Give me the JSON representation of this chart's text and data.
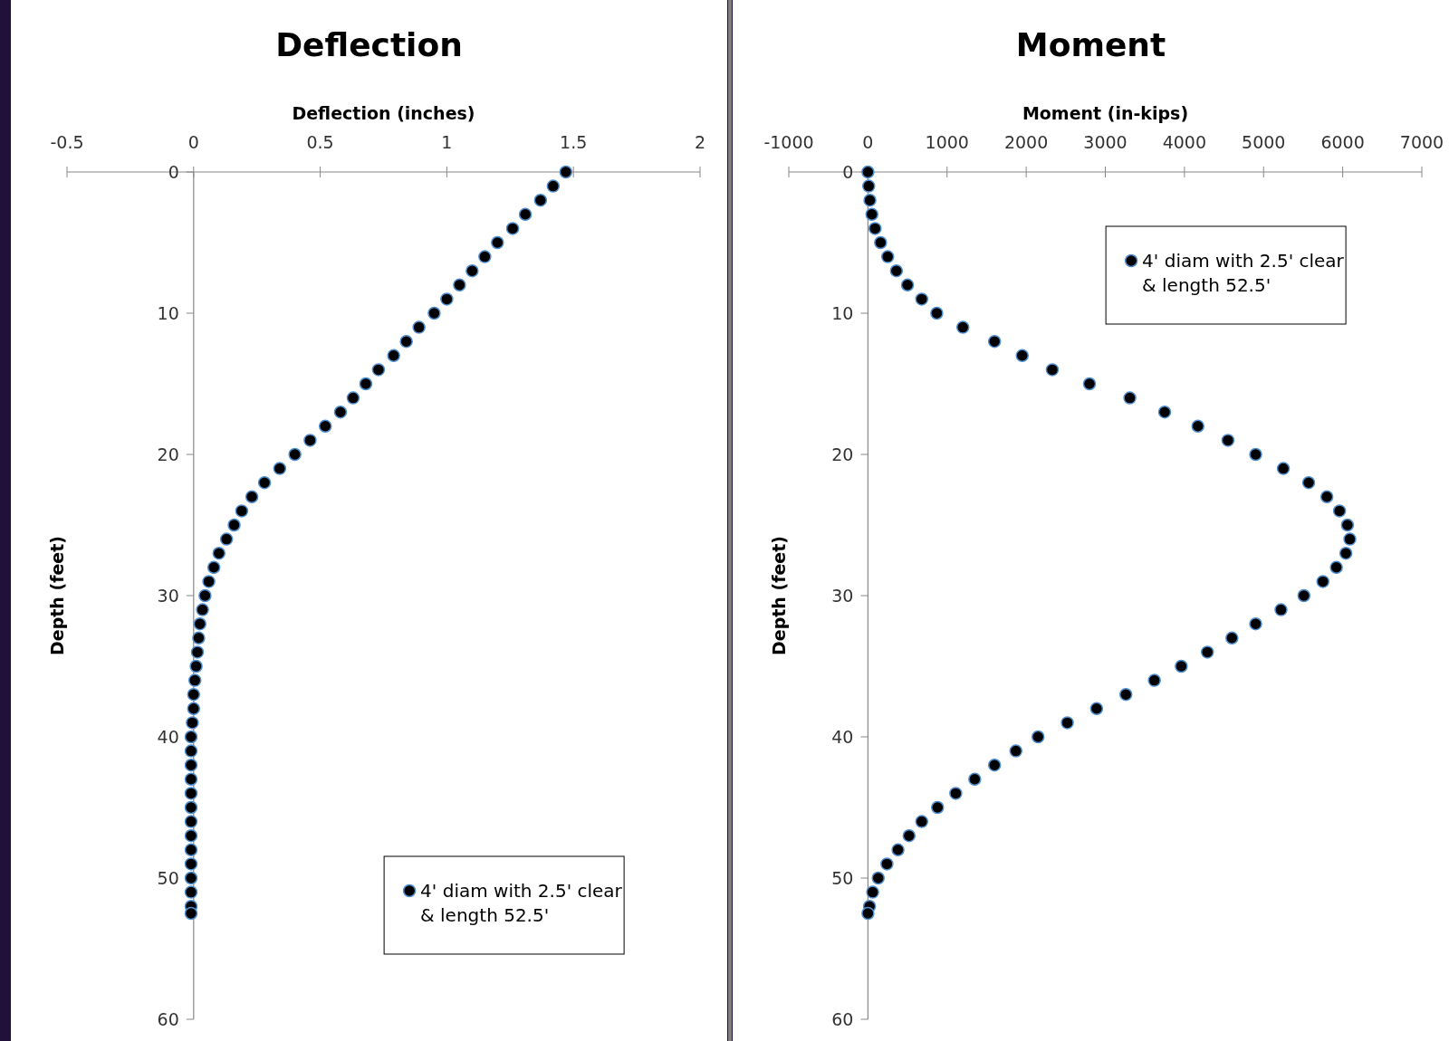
{
  "chart_data": [
    {
      "type": "scatter",
      "title": "Deflection",
      "xlabel": "Deflection (inches)",
      "ylabel": "Depth (feet)",
      "xlim": [
        -0.5,
        2
      ],
      "xticks": [
        -0.5,
        0,
        0.5,
        1,
        1.5,
        2
      ],
      "ylim": [
        60,
        0
      ],
      "yticks": [
        0,
        10,
        20,
        30,
        40,
        50,
        60
      ],
      "legend": "bottom right",
      "marker": "circle",
      "series": [
        {
          "name": "4' diam with 2.5' clear & length 52.5'",
          "color": "#000000",
          "x": [
            1.47,
            1.42,
            1.37,
            1.31,
            1.26,
            1.2,
            1.15,
            1.1,
            1.05,
            1.0,
            0.95,
            0.89,
            0.84,
            0.79,
            0.73,
            0.68,
            0.63,
            0.58,
            0.52,
            0.46,
            0.4,
            0.34,
            0.28,
            0.23,
            0.19,
            0.16,
            0.13,
            0.1,
            0.08,
            0.06,
            0.045,
            0.035,
            0.025,
            0.02,
            0.015,
            0.01,
            0.005,
            0,
            0,
            -0.005,
            -0.01,
            -0.01,
            -0.01,
            -0.01,
            -0.01,
            -0.01,
            -0.01,
            -0.01,
            -0.01,
            -0.01,
            -0.01,
            -0.01,
            -0.01,
            -0.01
          ],
          "values": [
            0,
            1,
            2,
            3,
            4,
            5,
            6,
            7,
            8,
            9,
            10,
            11,
            12,
            13,
            14,
            15,
            16,
            17,
            18,
            19,
            20,
            21,
            22,
            23,
            24,
            25,
            26,
            27,
            28,
            29,
            30,
            31,
            32,
            33,
            34,
            35,
            36,
            37,
            38,
            39,
            40,
            41,
            42,
            43,
            44,
            45,
            46,
            47,
            48,
            49,
            50,
            51,
            52,
            52.5
          ]
        }
      ]
    },
    {
      "type": "scatter",
      "title": "Moment",
      "xlabel": "Moment (in-kips)",
      "ylabel": "Depth (feet)",
      "xlim": [
        -1000,
        7000
      ],
      "xticks": [
        -1000,
        0,
        1000,
        2000,
        3000,
        4000,
        5000,
        6000,
        7000
      ],
      "ylim": [
        60,
        0
      ],
      "yticks": [
        0,
        10,
        20,
        30,
        40,
        50,
        60
      ],
      "legend": "top right",
      "marker": "circle",
      "series": [
        {
          "name": "4' diam with 2.5' clear & length 52.5'",
          "color": "#000000",
          "x": [
            0,
            10,
            25,
            50,
            90,
            160,
            250,
            360,
            500,
            680,
            870,
            1200,
            1600,
            1950,
            2330,
            2800,
            3310,
            3750,
            4170,
            4550,
            4900,
            5250,
            5570,
            5800,
            5960,
            6060,
            6090,
            6040,
            5920,
            5750,
            5510,
            5220,
            4900,
            4600,
            4290,
            3960,
            3620,
            3260,
            2890,
            2520,
            2150,
            1870,
            1600,
            1350,
            1110,
            880,
            680,
            520,
            380,
            240,
            130,
            60,
            20,
            0
          ],
          "values": [
            0,
            1,
            2,
            3,
            4,
            5,
            6,
            7,
            8,
            9,
            10,
            11,
            12,
            13,
            14,
            15,
            16,
            17,
            18,
            19,
            20,
            21,
            22,
            23,
            24,
            25,
            26,
            27,
            28,
            29,
            30,
            31,
            32,
            33,
            34,
            35,
            36,
            37,
            38,
            39,
            40,
            41,
            42,
            43,
            44,
            45,
            46,
            47,
            48,
            49,
            50,
            51,
            52,
            52.5
          ]
        }
      ]
    }
  ]
}
